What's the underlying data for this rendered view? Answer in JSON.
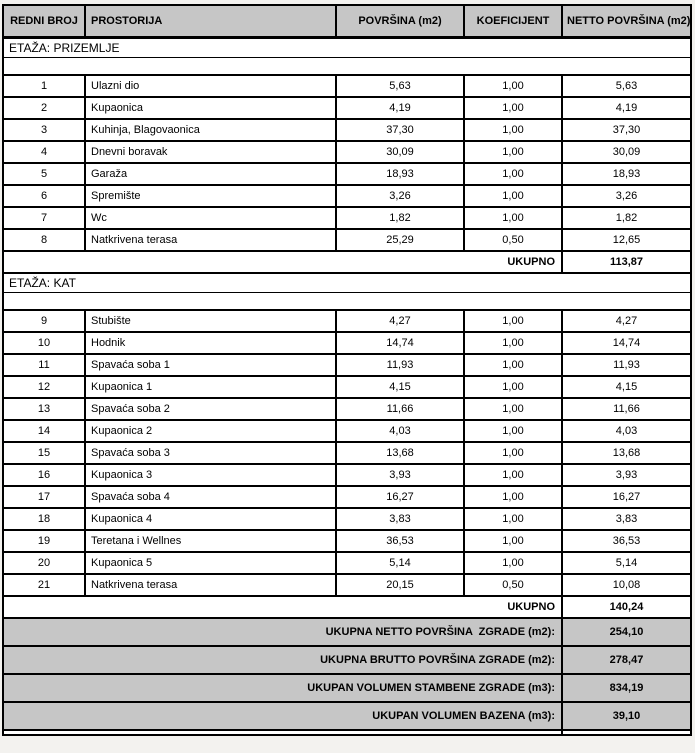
{
  "colors": {
    "header_bg": "#c6c6c6",
    "summary_bg": "#c6c6c6",
    "border": "#000000",
    "page_bg": "#f3f2ef"
  },
  "header": {
    "columns": [
      "REDNI BROJ",
      "PROSTORIJA",
      "POVRŠINA (m2)",
      "KOEFICIJENT",
      "NETTO POVRŠINA (m2)"
    ]
  },
  "prizemlje": {
    "title": "ETAŽA: PRIZEMLJE",
    "rows": [
      {
        "num": "1",
        "name": "Ulazni dio",
        "area": "5,63",
        "coef": "1,00",
        "net": "5,63"
      },
      {
        "num": "2",
        "name": "Kupaonica",
        "area": "4,19",
        "coef": "1,00",
        "net": "4,19"
      },
      {
        "num": "3",
        "name": "Kuhinja, Blagovaonica",
        "area": "37,30",
        "coef": "1,00",
        "net": "37,30"
      },
      {
        "num": "4",
        "name": "Dnevni boravak",
        "area": "30,09",
        "coef": "1,00",
        "net": "30,09"
      },
      {
        "num": "5",
        "name": "Garaža",
        "area": "18,93",
        "coef": "1,00",
        "net": "18,93"
      },
      {
        "num": "6",
        "name": "Spremište",
        "area": "3,26",
        "coef": "1,00",
        "net": "3,26"
      },
      {
        "num": "7",
        "name": "Wc",
        "area": "1,82",
        "coef": "1,00",
        "net": "1,82"
      },
      {
        "num": "8",
        "name": "Natkrivena terasa",
        "area": "25,29",
        "coef": "0,50",
        "net": "12,65"
      }
    ],
    "total_label": "UKUPNO",
    "total_value": "113,87"
  },
  "kat": {
    "title": "ETAŽA: KAT",
    "rows": [
      {
        "num": "9",
        "name": "Stubište",
        "area": "4,27",
        "coef": "1,00",
        "net": "4,27"
      },
      {
        "num": "10",
        "name": "Hodnik",
        "area": "14,74",
        "coef": "1,00",
        "net": "14,74"
      },
      {
        "num": "11",
        "name": "Spavaća soba 1",
        "area": "11,93",
        "coef": "1,00",
        "net": "11,93"
      },
      {
        "num": "12",
        "name": "Kupaonica 1",
        "area": "4,15",
        "coef": "1,00",
        "net": "4,15"
      },
      {
        "num": "13",
        "name": "Spavaća soba 2",
        "area": "11,66",
        "coef": "1,00",
        "net": "11,66"
      },
      {
        "num": "14",
        "name": "Kupaonica 2",
        "area": "4,03",
        "coef": "1,00",
        "net": "4,03"
      },
      {
        "num": "15",
        "name": "Spavaća soba 3",
        "area": "13,68",
        "coef": "1,00",
        "net": "13,68"
      },
      {
        "num": "16",
        "name": "Kupaonica 3",
        "area": "3,93",
        "coef": "1,00",
        "net": "3,93"
      },
      {
        "num": "17",
        "name": "Spavaća soba 4",
        "area": "16,27",
        "coef": "1,00",
        "net": "16,27"
      },
      {
        "num": "18",
        "name": "Kupaonica 4",
        "area": "3,83",
        "coef": "1,00",
        "net": "3,83"
      },
      {
        "num": "19",
        "name": "Teretana i Wellnes",
        "area": "36,53",
        "coef": "1,00",
        "net": "36,53"
      },
      {
        "num": "20",
        "name": "Kupaonica 5",
        "area": "5,14",
        "coef": "1,00",
        "net": "5,14"
      },
      {
        "num": "21",
        "name": "Natkrivena terasa",
        "area": "20,15",
        "coef": "0,50",
        "net": "10,08"
      }
    ],
    "total_label": "UKUPNO",
    "total_value": "140,24"
  },
  "summary": {
    "rows": [
      {
        "label": "UKUPNA NETTO POVRŠINA  ZGRADE (m2):",
        "value": "254,10"
      },
      {
        "label": "UKUPNA BRUTTO POVRŠINA ZGRADE (m2):",
        "value": "278,47"
      },
      {
        "label": "UKUPAN VOLUMEN STAMBENE ZGRADE (m3):",
        "value": "834,19"
      },
      {
        "label": "UKUPAN VOLUMEN BAZENA (m3):",
        "value": "39,10"
      }
    ]
  }
}
